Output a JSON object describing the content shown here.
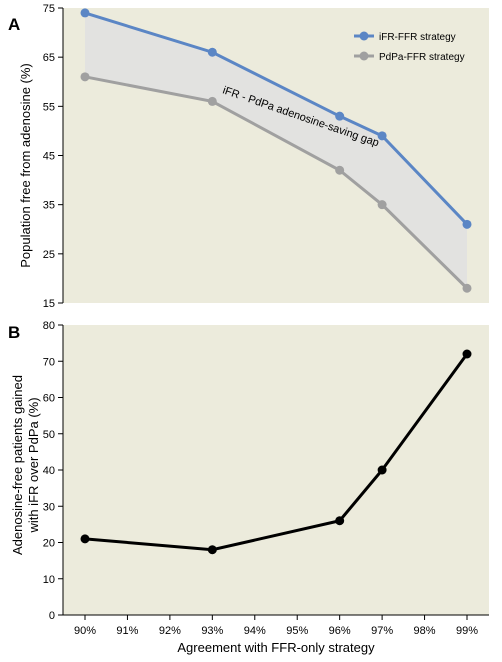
{
  "chart_data": [
    {
      "panel": "A",
      "type": "line",
      "ylabel": "Population free from adenosine  (%)",
      "ylim": [
        15,
        75
      ],
      "yticks": [
        15,
        25,
        35,
        45,
        55,
        65,
        75
      ],
      "x": [
        "90%",
        "93%",
        "96%",
        "97%",
        "99%"
      ],
      "x_values": [
        90,
        93,
        96,
        97,
        99
      ],
      "series": [
        {
          "name": "iFR-FFR strategy",
          "color": "#5b86c5",
          "values": [
            74,
            66,
            53,
            49,
            31
          ]
        },
        {
          "name": "PdPa-FFR strategy",
          "color": "#a0a0a0",
          "values": [
            61,
            56,
            42,
            35,
            18
          ]
        }
      ],
      "annotation": "iFR - PdPa adenosine-saving gap",
      "band_color": "#e2e2e0",
      "background": "#ecebdc",
      "legend_position": "top-right",
      "grid": false
    },
    {
      "panel": "B",
      "type": "line",
      "xlabel": "Agreement with FFR-only strategy",
      "ylabel_lines": [
        "Adenosine-free patients gained",
        "with iFR over PdPa  (%)"
      ],
      "ylim": [
        0,
        80
      ],
      "yticks": [
        0,
        10,
        20,
        30,
        40,
        50,
        60,
        70,
        80
      ],
      "xticks": [
        "90%",
        "91%",
        "92%",
        "93%",
        "94%",
        "95%",
        "96%",
        "97%",
        "98%",
        "99%"
      ],
      "xlim": [
        90,
        99
      ],
      "x_values": [
        90,
        93,
        96,
        97,
        99
      ],
      "series": [
        {
          "color": "#000000",
          "values": [
            21,
            18,
            26,
            40,
            72
          ]
        }
      ],
      "background": "#ecebdc",
      "grid": false
    }
  ]
}
